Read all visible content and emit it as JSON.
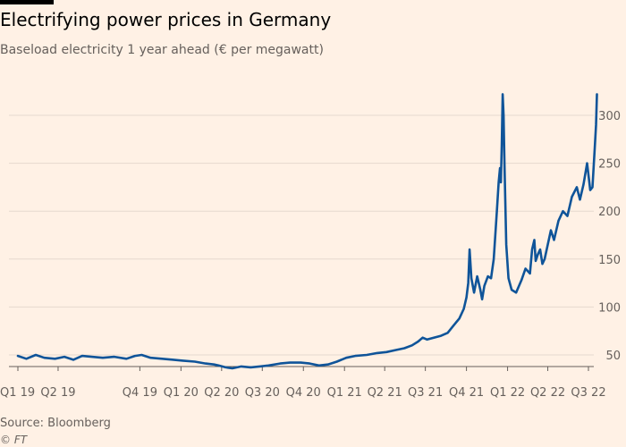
{
  "header": {
    "title": "Electrifying power prices in Germany",
    "subtitle": "Baseload electricity 1 year ahead (€ per megawatt)"
  },
  "footer": {
    "source": "Source: Bloomberg",
    "copyright": "© FT"
  },
  "colors": {
    "background": "#fff1e5",
    "line": "#0f5499",
    "grid": "#e6d9ce",
    "axis": "#66605c"
  },
  "chart_data": {
    "type": "line",
    "title": "Electrifying power prices in Germany",
    "subtitle": "Baseload electricity 1 year ahead (€ per megawatt)",
    "xlabel": "",
    "ylabel": "",
    "ylim": [
      35,
      330
    ],
    "yticks": [
      50,
      100,
      150,
      200,
      250,
      300
    ],
    "y_axis_position": "right",
    "grid": true,
    "legend": "none",
    "xticks": [
      "Q1 19",
      "Q2 19",
      "Q4 19",
      "Q1 20",
      "Q2 20",
      "Q3 20",
      "Q4 20",
      "Q1 21",
      "Q2 21",
      "Q3 21",
      "Q4 21",
      "Q1 22",
      "Q2 22",
      "Q3 22"
    ],
    "xtick_dates": [
      "2019-01-01",
      "2019-04-01",
      "2019-10-01",
      "2020-01-01",
      "2020-04-01",
      "2020-07-01",
      "2020-10-01",
      "2021-01-01",
      "2021-04-01",
      "2021-07-01",
      "2021-10-01",
      "2022-01-01",
      "2022-04-01",
      "2022-07-01"
    ],
    "series": [
      {
        "name": "",
        "color": "#0f5499",
        "points": [
          [
            "2019-01-01",
            49
          ],
          [
            "2019-01-20",
            46
          ],
          [
            "2019-02-10",
            50
          ],
          [
            "2019-03-01",
            47
          ],
          [
            "2019-03-25",
            46
          ],
          [
            "2019-04-15",
            48
          ],
          [
            "2019-05-05",
            45
          ],
          [
            "2019-05-25",
            49
          ],
          [
            "2019-06-15",
            48
          ],
          [
            "2019-07-10",
            47
          ],
          [
            "2019-08-05",
            48
          ],
          [
            "2019-09-01",
            46
          ],
          [
            "2019-09-20",
            49
          ],
          [
            "2019-10-05",
            50
          ],
          [
            "2019-10-25",
            47
          ],
          [
            "2019-11-20",
            46
          ],
          [
            "2019-12-15",
            45
          ],
          [
            "2020-01-05",
            44
          ],
          [
            "2020-02-01",
            43
          ],
          [
            "2020-02-25",
            41
          ],
          [
            "2020-03-15",
            40
          ],
          [
            "2020-03-25",
            39
          ],
          [
            "2020-04-10",
            37
          ],
          [
            "2020-04-25",
            36
          ],
          [
            "2020-05-15",
            38
          ],
          [
            "2020-06-05",
            37
          ],
          [
            "2020-06-25",
            38
          ],
          [
            "2020-07-15",
            39
          ],
          [
            "2020-08-10",
            41
          ],
          [
            "2020-09-01",
            42
          ],
          [
            "2020-09-25",
            42
          ],
          [
            "2020-10-15",
            41
          ],
          [
            "2020-11-05",
            39
          ],
          [
            "2020-11-25",
            40
          ],
          [
            "2020-12-15",
            43
          ],
          [
            "2021-01-05",
            47
          ],
          [
            "2021-01-25",
            49
          ],
          [
            "2021-02-20",
            50
          ],
          [
            "2021-03-15",
            52
          ],
          [
            "2021-04-05",
            53
          ],
          [
            "2021-04-25",
            55
          ],
          [
            "2021-05-15",
            57
          ],
          [
            "2021-06-01",
            60
          ],
          [
            "2021-06-15",
            64
          ],
          [
            "2021-06-25",
            68
          ],
          [
            "2021-07-05",
            66
          ],
          [
            "2021-07-20",
            68
          ],
          [
            "2021-08-05",
            70
          ],
          [
            "2021-08-20",
            73
          ],
          [
            "2021-09-01",
            80
          ],
          [
            "2021-09-15",
            88
          ],
          [
            "2021-09-25",
            98
          ],
          [
            "2021-10-01",
            110
          ],
          [
            "2021-10-05",
            125
          ],
          [
            "2021-10-08",
            160
          ],
          [
            "2021-10-12",
            130
          ],
          [
            "2021-10-18",
            115
          ],
          [
            "2021-10-25",
            132
          ],
          [
            "2021-11-01",
            118
          ],
          [
            "2021-11-05",
            108
          ],
          [
            "2021-11-10",
            122
          ],
          [
            "2021-11-18",
            132
          ],
          [
            "2021-11-25",
            130
          ],
          [
            "2021-12-01",
            150
          ],
          [
            "2021-12-08",
            200
          ],
          [
            "2021-12-12",
            230
          ],
          [
            "2021-12-15",
            245
          ],
          [
            "2021-12-17",
            230
          ],
          [
            "2021-12-19",
            270
          ],
          [
            "2021-12-21",
            322
          ],
          [
            "2021-12-23",
            300
          ],
          [
            "2021-12-25",
            250
          ],
          [
            "2021-12-29",
            165
          ],
          [
            "2022-01-03",
            130
          ],
          [
            "2022-01-10",
            118
          ],
          [
            "2022-01-20",
            115
          ],
          [
            "2022-02-01",
            128
          ],
          [
            "2022-02-10",
            140
          ],
          [
            "2022-02-20",
            135
          ],
          [
            "2022-02-25",
            160
          ],
          [
            "2022-03-02",
            170
          ],
          [
            "2022-03-05",
            148
          ],
          [
            "2022-03-10",
            155
          ],
          [
            "2022-03-15",
            160
          ],
          [
            "2022-03-20",
            145
          ],
          [
            "2022-03-25",
            150
          ],
          [
            "2022-04-01",
            165
          ],
          [
            "2022-04-08",
            180
          ],
          [
            "2022-04-15",
            170
          ],
          [
            "2022-04-25",
            190
          ],
          [
            "2022-05-05",
            200
          ],
          [
            "2022-05-15",
            195
          ],
          [
            "2022-05-25",
            215
          ],
          [
            "2022-06-05",
            225
          ],
          [
            "2022-06-12",
            212
          ],
          [
            "2022-06-20",
            228
          ],
          [
            "2022-06-28",
            250
          ],
          [
            "2022-07-05",
            222
          ],
          [
            "2022-07-10",
            225
          ],
          [
            "2022-07-15",
            265
          ],
          [
            "2022-07-18",
            290
          ],
          [
            "2022-07-20",
            322
          ]
        ]
      }
    ]
  }
}
